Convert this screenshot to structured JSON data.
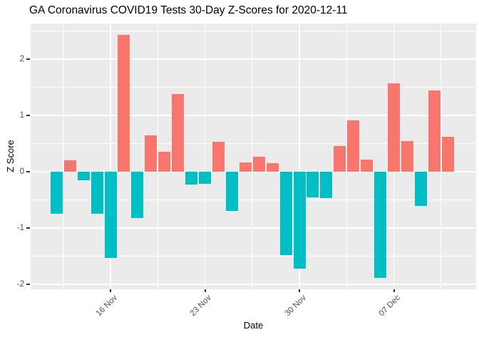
{
  "title": "GA Coronavirus COVID19 Tests 30-Day Z-Scores for 2020-12-11",
  "chart_data": {
    "type": "bar",
    "title": "GA Coronavirus COVID19 Tests 30-Day Z-Scores for 2020-12-11",
    "xlabel": "Date",
    "ylabel": "Z Score",
    "categories": [
      "12 Nov",
      "13 Nov",
      "14 Nov",
      "15 Nov",
      "16 Nov",
      "17 Nov",
      "18 Nov",
      "19 Nov",
      "20 Nov",
      "21 Nov",
      "22 Nov",
      "23 Nov",
      "24 Nov",
      "25 Nov",
      "26 Nov",
      "27 Nov",
      "28 Nov",
      "29 Nov",
      "30 Nov",
      "01 Dec",
      "02 Dec",
      "03 Dec",
      "04 Dec",
      "05 Dec",
      "06 Dec",
      "07 Dec",
      "08 Dec",
      "09 Dec",
      "10 Dec",
      "11 Dec"
    ],
    "values": [
      -0.75,
      0.2,
      -0.15,
      -0.75,
      -1.53,
      2.43,
      -0.82,
      0.64,
      0.35,
      1.38,
      -0.23,
      -0.22,
      0.53,
      -0.69,
      0.16,
      0.26,
      0.15,
      -1.48,
      -1.72,
      -0.46,
      -0.47,
      0.45,
      0.91,
      0.22,
      -1.88,
      1.57,
      0.54,
      -0.61,
      1.44,
      0.62
    ],
    "x_tick_labels": [
      "16 Nov",
      "23 Nov",
      "30 Nov",
      "07 Dec"
    ],
    "x_tick_indices": [
      4,
      11,
      18,
      25
    ],
    "y_ticks": [
      -2,
      -1,
      0,
      1,
      2
    ],
    "y_tick_labels": [
      "-2",
      "-1",
      "0",
      "1",
      "2"
    ],
    "y_minor_ticks": [
      -1.5,
      -0.5,
      0.5,
      1.5,
      2.5
    ],
    "ylim": [
      -2.09,
      2.63
    ],
    "grid": true,
    "legend": "none",
    "colors": {
      "positive": "#F8766D",
      "negative": "#00BFC4",
      "panel_bg": "#EBEBEB",
      "gridline": "#FFFFFF",
      "tick_label": "#4D4D4D",
      "tick_mark": "#333333"
    }
  }
}
